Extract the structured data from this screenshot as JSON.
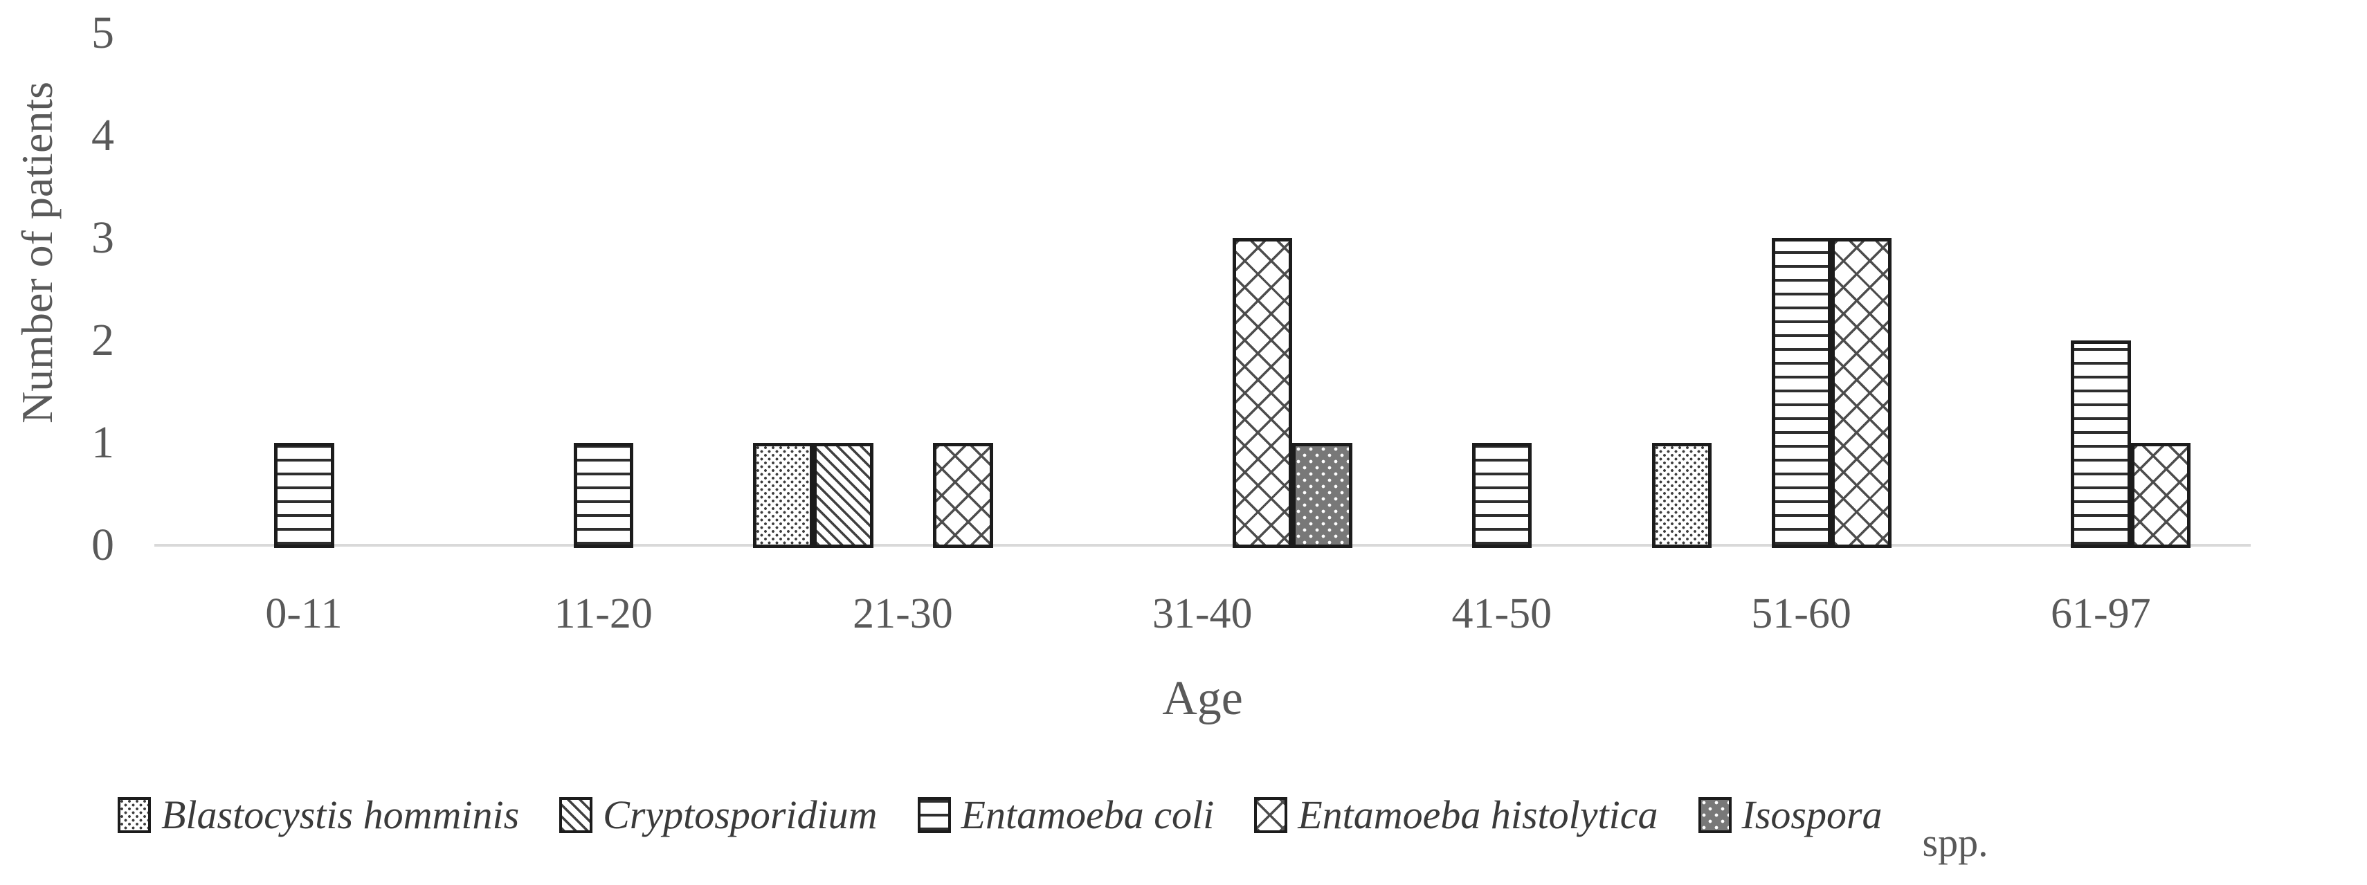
{
  "chart_data": {
    "type": "bar",
    "title": "",
    "xlabel": "Age",
    "ylabel": "Number of patients",
    "ylim": [
      0,
      5
    ],
    "yticks": [
      0,
      1,
      2,
      3,
      4,
      5
    ],
    "grid": false,
    "legend_position": "bottom",
    "categories": [
      "0-11",
      "11-20",
      "21-30",
      "31-40",
      "41-50",
      "51-60",
      "61-97"
    ],
    "series": [
      {
        "name": "Blastocystis homminis",
        "pattern": "dots-light",
        "values": [
          0,
          0,
          1,
          0,
          0,
          1,
          0
        ]
      },
      {
        "name": "Cryptosporidium",
        "pattern": "diagonal-lines",
        "values": [
          0,
          0,
          1,
          0,
          0,
          0,
          0
        ]
      },
      {
        "name": "Entamoeba coli",
        "pattern": "horizontal-lines",
        "values": [
          1,
          1,
          0,
          0,
          1,
          3,
          2
        ]
      },
      {
        "name": "Entamoeba histolytica",
        "pattern": "crosshatch",
        "values": [
          0,
          0,
          1,
          3,
          0,
          3,
          1
        ]
      },
      {
        "name": "Isospora",
        "pattern": "dots-on-dark",
        "values": [
          0,
          0,
          0,
          1,
          0,
          0,
          0
        ]
      }
    ],
    "legend_suffix": "spp.",
    "colors": {
      "axis_line": "#d9d9d9",
      "axis_text": "#595959",
      "bar_border": "#1c1c1c",
      "dark_fill": "#787878",
      "legend_text": "#3a3a3a"
    }
  },
  "layout_note_visible_text_only": true
}
